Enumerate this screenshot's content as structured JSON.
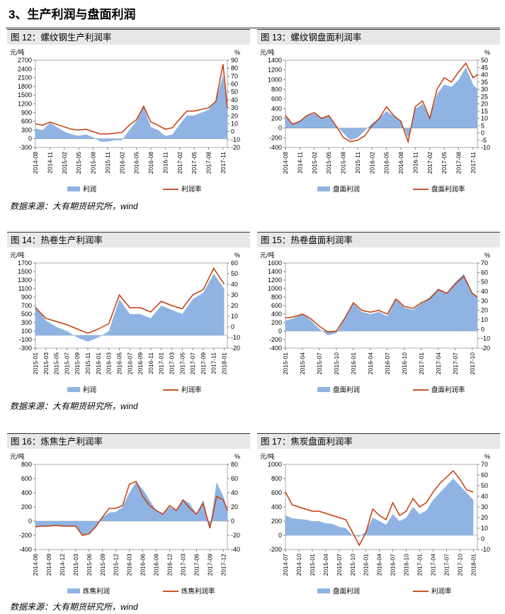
{
  "section_title": "3、生产利润与盘面利润",
  "sources": [
    "数据来源：大有期货研究所，wind",
    "数据来源：大有期货研究所，wind",
    "数据来源：大有期货研究所，wind"
  ],
  "colors": {
    "area": "#8fb4e3",
    "line": "#c43c0b"
  },
  "chart_data": [
    {
      "id": "fig12",
      "type": "area+line",
      "title": "图 12：螺纹钢生产利润率",
      "left_unit": "元/吨",
      "right_unit": "%",
      "left_ticks": [
        "2700",
        "2400",
        "2100",
        "1800",
        "1500",
        "1200",
        "900",
        "600",
        "300",
        "0",
        "-300"
      ],
      "right_ticks": [
        "90",
        "80",
        "70",
        "60",
        "50",
        "40",
        "30",
        "20",
        "10",
        "0",
        "-10",
        "-20"
      ],
      "ylim_left": [
        -300,
        2700
      ],
      "ylim_right": [
        -20,
        90
      ],
      "x_ticks": [
        "2014-08",
        "2014-11",
        "2015-02",
        "2015-05",
        "2015-08",
        "2015-11",
        "2016-02",
        "2016-05",
        "2016-08",
        "2016-11",
        "2017-02",
        "2017-05",
        "2017-08",
        "2017-11"
      ],
      "x": [
        0,
        0.5,
        1,
        1.5,
        2,
        2.5,
        3,
        3.5,
        4,
        4.5,
        5,
        5.5,
        6,
        6.5,
        7,
        7.5,
        8,
        8.5,
        9,
        9.5,
        10,
        10.5,
        11,
        11.5,
        12,
        12.5,
        13,
        13.3
      ],
      "series": [
        {
          "name": "利润",
          "kind": "area",
          "axis": "left",
          "values": [
            350,
            300,
            550,
            400,
            250,
            150,
            100,
            150,
            50,
            -100,
            -100,
            -50,
            -50,
            300,
            600,
            1100,
            400,
            300,
            100,
            150,
            500,
            800,
            800,
            900,
            1000,
            1300,
            2200,
            1100
          ]
        },
        {
          "name": "利润率",
          "kind": "line",
          "axis": "right",
          "values": [
            10,
            8,
            12,
            9,
            6,
            3,
            2,
            3,
            0,
            -3,
            -3,
            -2,
            -1,
            8,
            15,
            32,
            12,
            8,
            3,
            5,
            16,
            26,
            26,
            28,
            30,
            38,
            85,
            30
          ]
        }
      ]
    },
    {
      "id": "fig13",
      "type": "area+line",
      "title": "图 13：螺纹钢盘面利润率",
      "left_unit": "元/吨",
      "right_unit": "%",
      "left_ticks": [
        "1400",
        "1200",
        "1000",
        "800",
        "600",
        "400",
        "200",
        "0",
        "-200",
        "-400"
      ],
      "right_ticks": [
        "50",
        "45",
        "40",
        "35",
        "30",
        "25",
        "20",
        "15",
        "10",
        "5",
        "0",
        "-5",
        "-10"
      ],
      "ylim_left": [
        -400,
        1400
      ],
      "ylim_right": [
        -10,
        50
      ],
      "x_ticks": [
        "2014-08",
        "2014-11",
        "2015-02",
        "2015-05",
        "2015-08",
        "2015-11",
        "2016-02",
        "2016-05",
        "2016-08",
        "2016-11",
        "2017-02",
        "2017-05",
        "2017-08",
        "2017-11"
      ],
      "x": [
        0,
        0.5,
        1,
        1.5,
        2,
        2.5,
        3,
        3.5,
        4,
        4.5,
        5,
        5.5,
        6,
        6.5,
        7,
        7.5,
        8,
        8.5,
        9,
        9.5,
        10,
        10.5,
        11,
        11.5,
        12,
        12.5,
        13,
        13.3
      ],
      "series": [
        {
          "name": "盘面利润",
          "kind": "area",
          "axis": "left",
          "values": [
            250,
            100,
            150,
            250,
            300,
            200,
            250,
            50,
            -100,
            -250,
            -200,
            -50,
            100,
            200,
            350,
            250,
            150,
            -200,
            400,
            500,
            200,
            700,
            900,
            850,
            1000,
            1250,
            900,
            800
          ]
        },
        {
          "name": "盘面利润率",
          "kind": "line",
          "axis": "right",
          "values": [
            12,
            6,
            8,
            12,
            14,
            10,
            12,
            5,
            -3,
            -6,
            -5,
            -2,
            5,
            10,
            18,
            12,
            8,
            -6,
            18,
            22,
            10,
            30,
            38,
            35,
            42,
            48,
            38,
            40
          ]
        }
      ]
    },
    {
      "id": "fig14",
      "type": "area+line",
      "title": "图 14：热卷生产利润率",
      "left_unit": "元/吨",
      "right_unit": "%",
      "left_ticks": [
        "1700",
        "1500",
        "1300",
        "1100",
        "900",
        "700",
        "500",
        "300",
        "100",
        "-100",
        "-300"
      ],
      "right_ticks": [
        "60",
        "50",
        "40",
        "30",
        "20",
        "10",
        "0",
        "-10",
        "-20"
      ],
      "ylim_left": [
        -300,
        1700
      ],
      "ylim_right": [
        -20,
        60
      ],
      "x_ticks": [
        "2015-01",
        "2015-03",
        "2015-05",
        "2015-07",
        "2015-09",
        "2015-11",
        "2016-01",
        "2016-03",
        "2016-05",
        "2016-07",
        "2016-09",
        "2016-11",
        "2017-01",
        "2017-03",
        "2017-05",
        "2017-07",
        "2017-09",
        "2017-11",
        "2018-01"
      ],
      "x": [
        0,
        1,
        2,
        3,
        4,
        5,
        6,
        7,
        8,
        9,
        10,
        11,
        12,
        13,
        14,
        15,
        16,
        17,
        18
      ],
      "series": [
        {
          "name": "利润",
          "kind": "area",
          "axis": "left",
          "values": [
            700,
            350,
            200,
            100,
            -50,
            -150,
            -50,
            100,
            850,
            500,
            500,
            400,
            700,
            600,
            500,
            850,
            1000,
            1450,
            1100
          ]
        },
        {
          "name": "利润率",
          "kind": "line",
          "axis": "right",
          "values": [
            18,
            8,
            5,
            2,
            -2,
            -6,
            -2,
            3,
            30,
            18,
            18,
            14,
            24,
            20,
            17,
            30,
            35,
            55,
            40
          ]
        }
      ]
    },
    {
      "id": "fig15",
      "type": "area+line",
      "title": "图 15：热卷盘面利润率",
      "left_unit": "元/吨",
      "right_unit": "%",
      "left_ticks": [
        "1600",
        "1400",
        "1200",
        "1000",
        "800",
        "600",
        "400",
        "200",
        "0",
        "-200",
        "-400"
      ],
      "right_ticks": [
        "70",
        "60",
        "50",
        "40",
        "30",
        "20",
        "10",
        "0",
        "-10",
        "-20"
      ],
      "ylim_left": [
        -400,
        1600
      ],
      "ylim_right": [
        -20,
        70
      ],
      "x_ticks": [
        "2015-01",
        "2015-04",
        "2015-07",
        "2015-10",
        "2016-01",
        "2016-04",
        "2016-07",
        "2016-10",
        "2017-01",
        "2017-04",
        "2017-07",
        "2017-10"
      ],
      "x": [
        0,
        0.5,
        1,
        1.5,
        2,
        2.5,
        3,
        3.5,
        4,
        4.5,
        5,
        5.5,
        6,
        6.5,
        7,
        7.5,
        8,
        8.5,
        9,
        9.5,
        10,
        10.5,
        11,
        11.3
      ],
      "series": [
        {
          "name": "盘面利润",
          "kind": "area",
          "axis": "left",
          "values": [
            250,
            300,
            400,
            250,
            50,
            -100,
            -50,
            300,
            650,
            450,
            400,
            450,
            350,
            750,
            550,
            500,
            650,
            800,
            1000,
            900,
            1150,
            1350,
            900,
            800
          ]
        },
        {
          "name": "盘面利润率",
          "kind": "line",
          "axis": "right",
          "values": [
            12,
            13,
            16,
            11,
            3,
            -3,
            -2,
            12,
            28,
            20,
            18,
            20,
            16,
            32,
            24,
            22,
            28,
            32,
            42,
            38,
            48,
            56,
            38,
            34
          ]
        }
      ]
    },
    {
      "id": "fig16",
      "type": "area+line",
      "title": "图 16：炼焦生产利润率",
      "left_unit": "元/吨",
      "right_unit": "%",
      "left_ticks": [
        "800",
        "600",
        "400",
        "200",
        "0",
        "-200",
        "-400"
      ],
      "right_ticks": [
        "80",
        "60",
        "40",
        "20",
        "0",
        "-20",
        "-40"
      ],
      "ylim_left": [
        -400,
        800
      ],
      "ylim_right": [
        -40,
        80
      ],
      "x_ticks": [
        "2014-06",
        "2014-09",
        "2014-12",
        "2015-03",
        "2015-06",
        "2015-09",
        "2015-12",
        "2016-03",
        "2016-06",
        "2016-09",
        "2016-12",
        "2017-03",
        "2017-06",
        "2017-09",
        "2017-12"
      ],
      "x": [
        0,
        0.5,
        1,
        1.5,
        2,
        2.5,
        3,
        3.5,
        4,
        4.5,
        5,
        5.5,
        6,
        6.5,
        7,
        7.5,
        8,
        8.5,
        9,
        9.5,
        10,
        10.5,
        11,
        11.5,
        12,
        12.5,
        13,
        13.5,
        14,
        14.3
      ],
      "series": [
        {
          "name": "炼焦利润",
          "kind": "area",
          "axis": "left",
          "values": [
            -80,
            -70,
            -70,
            -60,
            -70,
            -70,
            -70,
            -200,
            -180,
            -80,
            50,
            120,
            130,
            200,
            400,
            550,
            450,
            300,
            150,
            100,
            200,
            150,
            300,
            250,
            100,
            300,
            -100,
            550,
            350,
            150
          ]
        },
        {
          "name": "炼焦利润率",
          "kind": "line",
          "axis": "right",
          "values": [
            -8,
            -7,
            -7,
            -6,
            -7,
            -7,
            -7,
            -20,
            -18,
            -8,
            6,
            18,
            18,
            22,
            52,
            56,
            35,
            22,
            15,
            10,
            22,
            15,
            30,
            18,
            10,
            25,
            -10,
            35,
            30,
            15
          ]
        }
      ]
    },
    {
      "id": "fig17",
      "type": "area+line",
      "title": "图 17：焦炭盘面利润率",
      "left_unit": "元/吨",
      "right_unit": "%",
      "left_ticks": [
        "1000",
        "800",
        "600",
        "400",
        "200",
        "0",
        "-200"
      ],
      "right_ticks": [
        "70",
        "60",
        "50",
        "40",
        "30",
        "20",
        "10",
        "0",
        "-10"
      ],
      "ylim_left": [
        -200,
        1000
      ],
      "ylim_right": [
        -10,
        70
      ],
      "x_ticks": [
        "2014-07",
        "2014-10",
        "2015-01",
        "2015-04",
        "2015-07",
        "2015-10",
        "2016-01",
        "2016-04",
        "2016-07",
        "2016-10",
        "2017-01",
        "2017-04",
        "2017-07",
        "2017-10",
        "2018-01"
      ],
      "x": [
        0,
        0.5,
        1,
        1.5,
        2,
        2.5,
        3,
        3.5,
        4,
        4.5,
        5,
        5.5,
        6,
        6.5,
        7,
        7.5,
        8,
        8.5,
        9,
        9.5,
        10,
        10.5,
        11,
        11.5,
        12,
        12.5,
        13,
        13.5,
        14
      ],
      "series": [
        {
          "name": "盘面利润",
          "kind": "area",
          "axis": "left",
          "values": [
            280,
            240,
            230,
            220,
            200,
            200,
            170,
            160,
            120,
            100,
            0,
            -20,
            50,
            250,
            200,
            150,
            300,
            200,
            250,
            400,
            300,
            350,
            500,
            600,
            700,
            800,
            700,
            600,
            500
          ]
        },
        {
          "name": "利润率",
          "kind": "line",
          "axis": "right",
          "values": [
            44,
            32,
            30,
            28,
            26,
            26,
            24,
            22,
            20,
            18,
            6,
            -6,
            6,
            28,
            22,
            18,
            34,
            22,
            26,
            38,
            30,
            34,
            44,
            52,
            58,
            64,
            56,
            46,
            44
          ]
        }
      ]
    }
  ]
}
